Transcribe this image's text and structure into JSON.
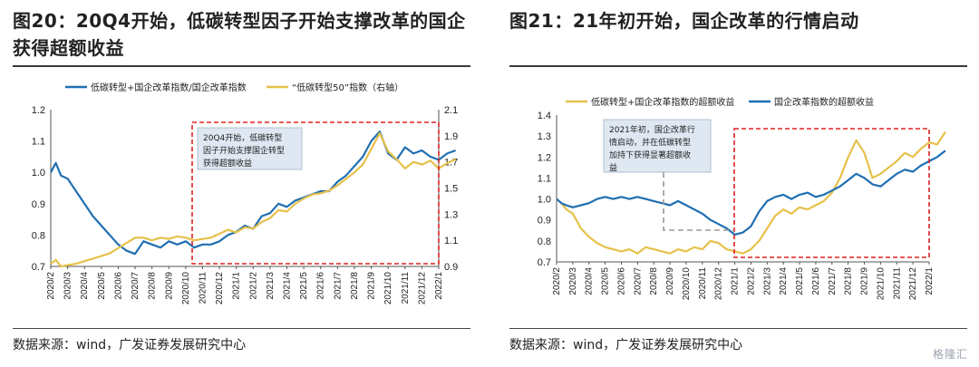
{
  "left": {
    "title": "图20：20Q4开始，低碳转型因子开始支撑改革的国企获得超额收益",
    "source": "数据来源：wind，广发证券发展研究中心"
  },
  "right": {
    "title": "图21：21年初开始，国企改革的行情启动",
    "source": "数据来源：wind，广发证券发展研究中心"
  },
  "watermark": "格隆汇",
  "chart_data": [
    {
      "type": "line",
      "annotation": [
        "20Q4开始，低碳转型",
        "因子开始支撑国企转型",
        "获得超额收益"
      ],
      "legend": "top",
      "left_axis": {
        "ylim": [
          0.7,
          1.2
        ],
        "ticks": [
          "0.7",
          "0.8",
          "0.9",
          "1.0",
          "1.1",
          "1.2"
        ]
      },
      "right_axis": {
        "ylim": [
          0.9,
          2.1
        ],
        "ticks": [
          "0.9",
          "1.1",
          "1.3",
          "1.5",
          "1.7",
          "1.9",
          "2.1"
        ]
      },
      "x_ticks": [
        "2020/2",
        "2020/3",
        "2020/4",
        "2020/5",
        "2020/6",
        "2020/7",
        "2020/8",
        "2020/9",
        "2020/10",
        "2020/11",
        "2020/12",
        "2021/1",
        "2021/2",
        "2021/3",
        "2021/4",
        "2021/5",
        "2021/6",
        "2021/7",
        "2021/8",
        "2021/9",
        "2021/10",
        "2021/11",
        "2021/12",
        "2022/1"
      ],
      "series": [
        {
          "name": "低碳转型+国企改革指数/国企改革指数",
          "axis": "left",
          "color": "#1f6fb2",
          "x": [
            0,
            0.3,
            0.6,
            1,
            1.5,
            2,
            2.5,
            3,
            3.5,
            4,
            4.5,
            5,
            5.5,
            6,
            6.5,
            7,
            7.5,
            8,
            8.5,
            9,
            9.5,
            10,
            10.5,
            11,
            11.5,
            12,
            12.5,
            13,
            13.5,
            14,
            14.5,
            15,
            15.5,
            16,
            16.5,
            17,
            17.5,
            18,
            18.5,
            19,
            19.5,
            20,
            20.5,
            21,
            21.5,
            22,
            22.5,
            23,
            23.5,
            24
          ],
          "values": [
            1.0,
            1.03,
            0.99,
            0.98,
            0.94,
            0.9,
            0.86,
            0.83,
            0.8,
            0.77,
            0.75,
            0.74,
            0.78,
            0.77,
            0.76,
            0.78,
            0.77,
            0.78,
            0.76,
            0.77,
            0.77,
            0.78,
            0.8,
            0.81,
            0.83,
            0.82,
            0.86,
            0.87,
            0.9,
            0.89,
            0.91,
            0.92,
            0.93,
            0.94,
            0.94,
            0.97,
            0.99,
            1.02,
            1.05,
            1.1,
            1.13,
            1.06,
            1.04,
            1.08,
            1.06,
            1.07,
            1.05,
            1.04,
            1.06,
            1.07
          ]
        },
        {
          "name": "“低碳转型50”指数（右轴）",
          "axis": "right",
          "color": "#e6c14a",
          "x": [
            0,
            0.3,
            0.6,
            1,
            1.5,
            2,
            2.5,
            3,
            3.5,
            4,
            4.5,
            5,
            5.5,
            6,
            6.5,
            7,
            7.5,
            8,
            8.5,
            9,
            9.5,
            10,
            10.5,
            11,
            11.5,
            12,
            12.5,
            13,
            13.5,
            14,
            14.5,
            15,
            15.5,
            16,
            16.5,
            17,
            17.5,
            18,
            18.5,
            19,
            19.5,
            20,
            20.5,
            21,
            21.5,
            22,
            22.5,
            23,
            23.5,
            24
          ],
          "values": [
            0.92,
            0.95,
            0.9,
            0.91,
            0.92,
            0.94,
            0.96,
            0.98,
            1.0,
            1.04,
            1.08,
            1.12,
            1.12,
            1.1,
            1.12,
            1.11,
            1.13,
            1.12,
            1.1,
            1.11,
            1.12,
            1.15,
            1.18,
            1.16,
            1.2,
            1.19,
            1.24,
            1.27,
            1.33,
            1.32,
            1.38,
            1.42,
            1.45,
            1.46,
            1.48,
            1.52,
            1.57,
            1.62,
            1.68,
            1.8,
            1.92,
            1.78,
            1.72,
            1.65,
            1.7,
            1.68,
            1.71,
            1.65,
            1.69,
            1.72
          ]
        }
      ]
    },
    {
      "type": "line",
      "annotation": [
        "2021年初，国企改革行",
        "情启动，并在低碳转型",
        "加持下获得显著超额收",
        "益"
      ],
      "legend": "top",
      "left_axis": {
        "ylim": [
          0.7,
          1.4
        ],
        "ticks": [
          "0.7",
          "0.8",
          "0.9",
          "1.0",
          "1.1",
          "1.2",
          "1.3",
          "1.4"
        ]
      },
      "x_ticks": [
        "2020/2",
        "2020/3",
        "2020/4",
        "2020/5",
        "2020/6",
        "2020/7",
        "2020/8",
        "2020/9",
        "2020/10",
        "2020/11",
        "2020/12",
        "2021/1",
        "2021/2",
        "2021/3",
        "2021/4",
        "2021/5",
        "2021/6",
        "2021/7",
        "2021/8",
        "2021/9",
        "2021/10",
        "2021/11",
        "2021/12",
        "2022/1"
      ],
      "series": [
        {
          "name": "低碳转型+国企改革指数的超额收益",
          "axis": "left",
          "color": "#e6c14a",
          "x": [
            0,
            0.3,
            0.6,
            1,
            1.5,
            2,
            2.5,
            3,
            3.5,
            4,
            4.5,
            5,
            5.5,
            6,
            6.5,
            7,
            7.5,
            8,
            8.5,
            9,
            9.5,
            10,
            10.5,
            11,
            11.5,
            12,
            12.5,
            13,
            13.5,
            14,
            14.5,
            15,
            15.5,
            16,
            16.5,
            17,
            17.5,
            18,
            18.5,
            19,
            19.5,
            20,
            20.5,
            21,
            21.5,
            22,
            22.5,
            23,
            23.5,
            24
          ],
          "values": [
            1.0,
            0.98,
            0.95,
            0.93,
            0.86,
            0.82,
            0.79,
            0.77,
            0.76,
            0.75,
            0.76,
            0.74,
            0.77,
            0.76,
            0.75,
            0.74,
            0.76,
            0.75,
            0.77,
            0.76,
            0.8,
            0.79,
            0.76,
            0.75,
            0.74,
            0.76,
            0.8,
            0.86,
            0.92,
            0.95,
            0.93,
            0.96,
            0.95,
            0.97,
            0.99,
            1.03,
            1.1,
            1.2,
            1.28,
            1.22,
            1.1,
            1.12,
            1.15,
            1.18,
            1.22,
            1.2,
            1.24,
            1.27,
            1.26,
            1.32
          ]
        },
        {
          "name": "国企改革指数的超额收益",
          "axis": "left",
          "color": "#1f6fb2",
          "x": [
            0,
            0.3,
            0.6,
            1,
            1.5,
            2,
            2.5,
            3,
            3.5,
            4,
            4.5,
            5,
            5.5,
            6,
            6.5,
            7,
            7.5,
            8,
            8.5,
            9,
            9.5,
            10,
            10.5,
            11,
            11.5,
            12,
            12.5,
            13,
            13.5,
            14,
            14.5,
            15,
            15.5,
            16,
            16.5,
            17,
            17.5,
            18,
            18.5,
            19,
            19.5,
            20,
            20.5,
            21,
            21.5,
            22,
            22.5,
            23,
            23.5,
            24
          ],
          "values": [
            1.0,
            0.98,
            0.97,
            0.96,
            0.97,
            0.98,
            1.0,
            1.01,
            1.0,
            1.01,
            1.0,
            1.01,
            1.0,
            0.99,
            0.98,
            0.97,
            0.99,
            0.97,
            0.95,
            0.93,
            0.9,
            0.88,
            0.86,
            0.83,
            0.84,
            0.87,
            0.94,
            0.99,
            1.01,
            1.02,
            1.0,
            1.02,
            1.03,
            1.01,
            1.02,
            1.04,
            1.06,
            1.09,
            1.12,
            1.1,
            1.07,
            1.06,
            1.09,
            1.12,
            1.14,
            1.13,
            1.16,
            1.18,
            1.2,
            1.23
          ]
        }
      ]
    }
  ]
}
